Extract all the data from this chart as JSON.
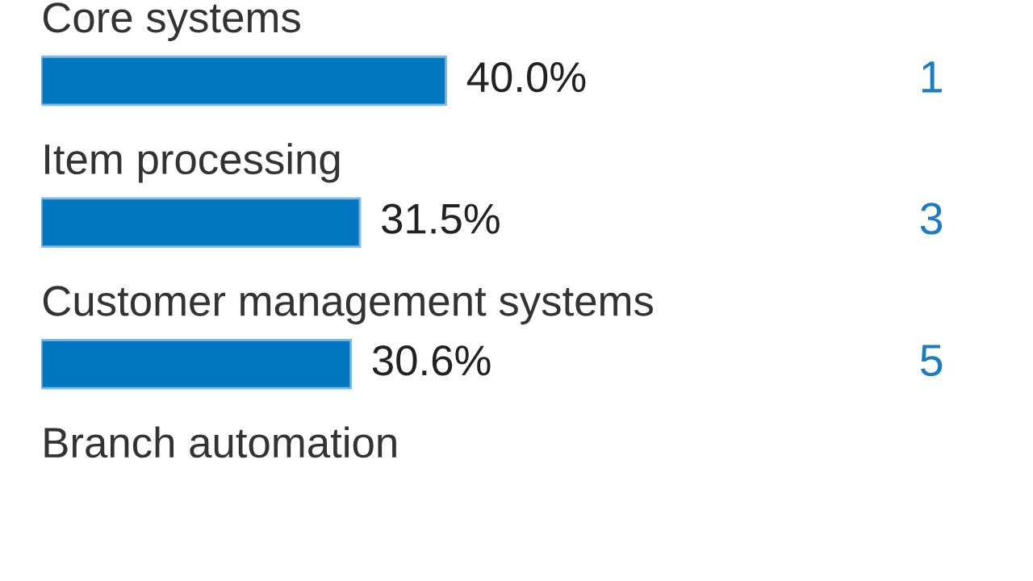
{
  "chart_data": {
    "type": "bar",
    "orientation": "horizontal",
    "categories": [
      "Core systems",
      "Item processing",
      "Customer management systems",
      "Branch automation"
    ],
    "values": [
      40.0,
      31.5,
      30.6,
      null
    ],
    "value_labels": [
      "40.0%",
      "31.5%",
      "30.6%",
      null
    ],
    "color": "#0077c0",
    "annotations": [
      "1",
      "3",
      "5"
    ]
  }
}
